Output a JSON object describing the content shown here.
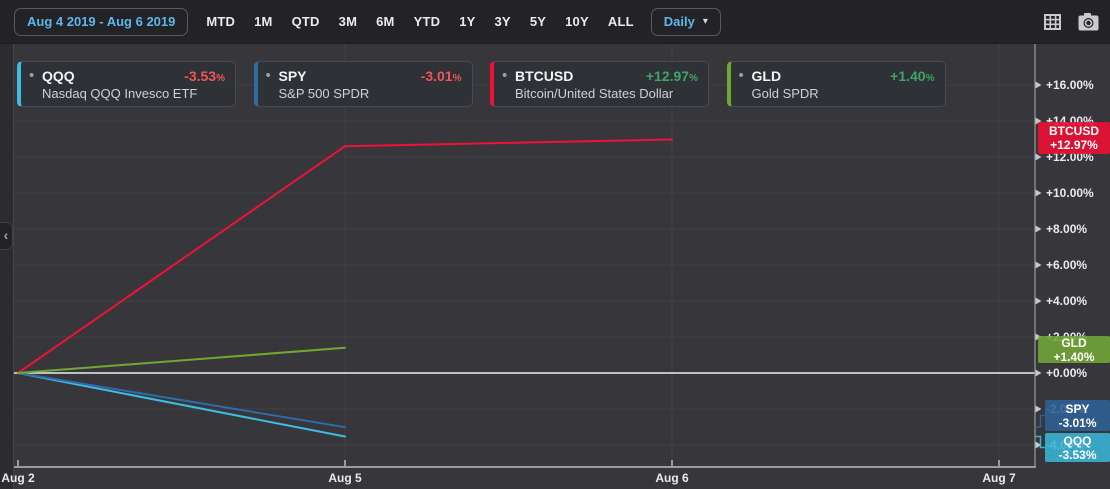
{
  "toolbar": {
    "date_range": "Aug 4 2019 - Aug 6 2019",
    "ranges": [
      "MTD",
      "1M",
      "QTD",
      "3M",
      "6M",
      "YTD",
      "1Y",
      "3Y",
      "5Y",
      "10Y",
      "ALL"
    ],
    "interval_label": "Daily",
    "interval_caret": "▾"
  },
  "left_panel": {
    "collapse_arrow": "‹"
  },
  "colors": {
    "background": "#37373b",
    "toolbar_bg": "#232327",
    "grid": "#424246",
    "baseline": "#eeeeee",
    "axis": "#9a9ca1",
    "tick_arrow": "#c6c8cd",
    "label_text": "#e8eaed",
    "accent_blue": "#5db7e8",
    "positive": "#40a468",
    "negative": "#f0555c",
    "card_bg": "#2e3135"
  },
  "chart_data": {
    "type": "line",
    "x": [
      "Aug 2",
      "Aug 5",
      "Aug 6",
      "Aug 7"
    ],
    "y_axis": {
      "unit": "%",
      "ticks": [
        16,
        14,
        12,
        10,
        8,
        6,
        4,
        2,
        0,
        -2,
        -4
      ],
      "tick_labels": [
        "+16.00%",
        "+14.00%",
        "+12.00%",
        "+10.00%",
        "+8.00%",
        "+6.00%",
        "+4.00%",
        "+2.00%",
        "+0.00%",
        "-2.00%",
        "-4.00%"
      ],
      "baseline": 0
    },
    "grid": true,
    "legend_position": "top",
    "series": [
      {
        "ticker": "QQQ",
        "name": "Nasdaq QQQ Invesco ETF",
        "change": "-3.53",
        "change_suffix": "%",
        "direction": "down",
        "color": "#3fbbe4",
        "badge_color": "#39b3d8",
        "points": [
          {
            "x": "Aug 2",
            "y": 0
          },
          {
            "x": "Aug 5",
            "y": -3.53
          }
        ]
      },
      {
        "ticker": "SPY",
        "name": "S&P 500 SPDR",
        "change": "-3.01",
        "change_suffix": "%",
        "direction": "down",
        "color": "#2e6ca8",
        "badge_color": "#2e6096",
        "points": [
          {
            "x": "Aug 2",
            "y": 0
          },
          {
            "x": "Aug 5",
            "y": -3.01
          }
        ]
      },
      {
        "ticker": "BTCUSD",
        "name": "Bitcoin/United States Dollar",
        "change": "+12.97",
        "change_suffix": "%",
        "direction": "up",
        "color": "#f01038",
        "badge_color": "#ef0f35",
        "points": [
          {
            "x": "Aug 2",
            "y": 0
          },
          {
            "x": "Aug 5",
            "y": 12.6
          },
          {
            "x": "Aug 6",
            "y": 12.97
          }
        ]
      },
      {
        "ticker": "GLD",
        "name": "Gold SPDR",
        "change": "+1.40",
        "change_suffix": "%",
        "direction": "up",
        "color": "#6fa831",
        "badge_color": "#73a637",
        "points": [
          {
            "x": "Aug 2",
            "y": 0
          },
          {
            "x": "Aug 5",
            "y": 1.4
          }
        ]
      }
    ]
  }
}
